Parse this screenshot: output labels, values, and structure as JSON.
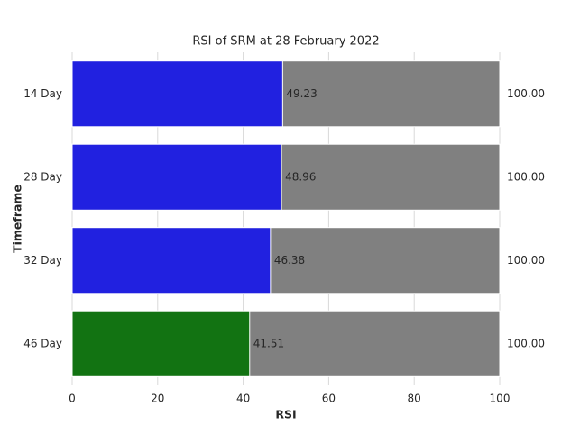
{
  "chart_data": {
    "type": "bar",
    "orientation": "horizontal",
    "title": "RSI of SRM at 28 February 2022",
    "xlabel": "RSI",
    "ylabel": "Timeframe",
    "categories": [
      "14 Day",
      "28 Day",
      "32 Day",
      "46 Day"
    ],
    "series": [
      {
        "colors": [
          "#808080",
          "#808080",
          "#808080",
          "#808080"
        ],
        "values": [
          100,
          100,
          100,
          100
        ],
        "value_labels": [
          "100.00",
          "100.00",
          "100.00",
          "100.00"
        ]
      },
      {
        "colors": [
          "#2121e0",
          "#2121e0",
          "#2121e0",
          "#127312"
        ],
        "values": [
          49.23,
          48.96,
          46.38,
          41.51
        ]
      }
    ],
    "xlim": [
      0,
      100
    ],
    "xticks": [
      0,
      20,
      40,
      60,
      80,
      100
    ],
    "grid": true
  }
}
